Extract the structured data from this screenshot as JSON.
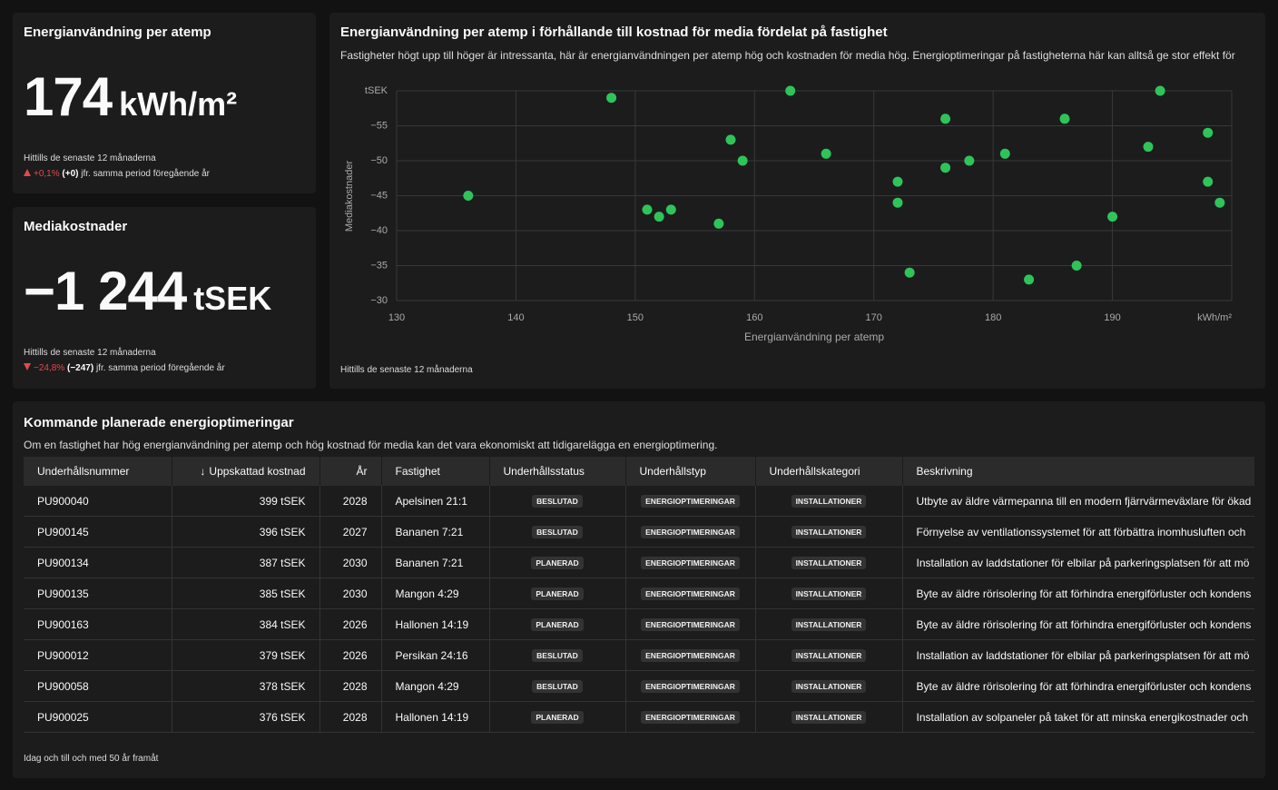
{
  "kpis": [
    {
      "title": "Energianvändning per atemp",
      "value": "174",
      "unit": "kWh/m²",
      "period": "Hittills de senaste 12 månaderna",
      "change_pct": "+0,1%",
      "change_abs": "(+0)",
      "comparison": "jfr. samma period föregående år",
      "direction": "up"
    },
    {
      "title": "Mediakostnader",
      "value": "−1 244",
      "unit": "tSEK",
      "period": "Hittills de senaste 12 månaderna",
      "change_pct": "−24,8%",
      "change_abs": "(−247)",
      "comparison": "jfr. samma period föregående år",
      "direction": "down"
    }
  ],
  "chart_data": {
    "type": "scatter",
    "title": "Energianvändning per atemp i förhållande till kostnad för media fördelat på fastighet",
    "subtitle": "Fastigheter högt upp till höger är intressanta, här är energianvändningen per atemp hög och kostnaden för media hög. Energioptimeringar på fastigheterna här kan alltså ge stor effekt för",
    "footnote": "Hittills de senaste 12 månaderna",
    "x_label": "Energianvändning per atemp",
    "y_label": "Mediakostnader",
    "color": "#2ec45a",
    "grid": true,
    "x": [
      136,
      148,
      151,
      152,
      153,
      157,
      158,
      159,
      163,
      166,
      172,
      172,
      173,
      176,
      176,
      178,
      181,
      183,
      186,
      187,
      190,
      193,
      194,
      198,
      198,
      199
    ],
    "values": [
      -45,
      -59,
      -43,
      -42,
      -43,
      -41,
      -53,
      -50,
      -60,
      -51,
      -47,
      -44,
      -34,
      -56,
      -49,
      -50,
      -51,
      -33,
      -56,
      -35,
      -42,
      -52,
      -60,
      -54,
      -47,
      -44
    ],
    "xlim": [
      130,
      200
    ],
    "xticks": [
      130,
      140,
      150,
      160,
      170,
      180,
      190,
      {
        "value": 200,
        "label": "kWh/m²"
      }
    ],
    "ylim": [
      -30,
      -60
    ],
    "yticks": [
      {
        "value": -30,
        "label": "−30"
      },
      {
        "value": -35,
        "label": "−35"
      },
      {
        "value": -40,
        "label": "−40"
      },
      {
        "value": -45,
        "label": "−45"
      },
      {
        "value": -50,
        "label": "−50"
      },
      {
        "value": -55,
        "label": "−55"
      },
      {
        "value": -60,
        "label": "tSEK"
      }
    ]
  },
  "table": {
    "title": "Kommande planerade energioptimeringar",
    "subtitle": "Om en fastighet har hög energianvändning per atemp och hög kostnad för media kan det vara ekonomiskt att tidigarelägga en energioptimering.",
    "footnote": "Idag och till och med 50 år framåt",
    "columns": [
      "Underhållsnummer",
      "Uppskattad kostnad",
      "År",
      "Fastighet",
      "Underhållsstatus",
      "Underhållstyp",
      "Underhållskategori",
      "Beskrivning"
    ],
    "rows": [
      [
        "PU900040",
        "399 tSEK",
        "2028",
        "Apelsinen 21:1",
        "BESLUTAD",
        "ENERGIOPTIMERINGAR",
        "INSTALLATIONER",
        "Utbyte av äldre värmepanna till en modern fjärrvärmeväxlare för ökad"
      ],
      [
        "PU900145",
        "396 tSEK",
        "2027",
        "Bananen 7:21",
        "BESLUTAD",
        "ENERGIOPTIMERINGAR",
        "INSTALLATIONER",
        "Förnyelse av ventilationssystemet för att förbättra inomhusluften och"
      ],
      [
        "PU900134",
        "387 tSEK",
        "2030",
        "Bananen 7:21",
        "PLANERAD",
        "ENERGIOPTIMERINGAR",
        "INSTALLATIONER",
        "Installation av laddstationer för elbilar på parkeringsplatsen för att mö"
      ],
      [
        "PU900135",
        "385 tSEK",
        "2030",
        "Mangon 4:29",
        "PLANERAD",
        "ENERGIOPTIMERINGAR",
        "INSTALLATIONER",
        "Byte av äldre rörisolering för att förhindra energiförluster och kondens"
      ],
      [
        "PU900163",
        "384 tSEK",
        "2026",
        "Hallonen 14:19",
        "PLANERAD",
        "ENERGIOPTIMERINGAR",
        "INSTALLATIONER",
        "Byte av äldre rörisolering för att förhindra energiförluster och kondens"
      ],
      [
        "PU900012",
        "379 tSEK",
        "2026",
        "Persikan 24:16",
        "BESLUTAD",
        "ENERGIOPTIMERINGAR",
        "INSTALLATIONER",
        "Installation av laddstationer för elbilar på parkeringsplatsen för att mö"
      ],
      [
        "PU900058",
        "378 tSEK",
        "2028",
        "Mangon 4:29",
        "BESLUTAD",
        "ENERGIOPTIMERINGAR",
        "INSTALLATIONER",
        "Byte av äldre rörisolering för att förhindra energiförluster och kondens"
      ],
      [
        "PU900025",
        "376 tSEK",
        "2028",
        "Hallonen 14:19",
        "PLANERAD",
        "ENERGIOPTIMERINGAR",
        "INSTALLATIONER",
        "Installation av solpaneler på taket för att minska energikostnader och"
      ]
    ]
  }
}
